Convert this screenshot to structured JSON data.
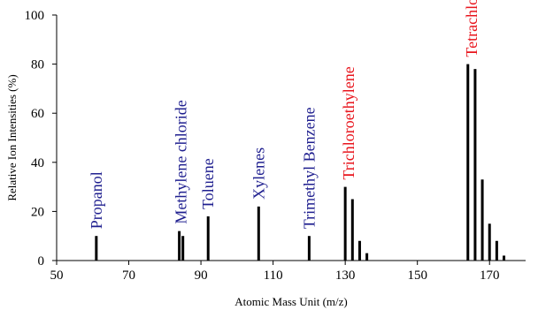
{
  "chart_data": {
    "type": "bar",
    "xlabel": "Atomic Mass Unit (m/z)",
    "ylabel": "Relative Ion Intensities (%)",
    "xlim": [
      50,
      180
    ],
    "ylim": [
      0,
      100
    ],
    "xticks": [
      50,
      70,
      90,
      110,
      130,
      150,
      170
    ],
    "yticks": [
      0,
      20,
      40,
      60,
      80,
      100
    ],
    "grid": false,
    "bars": [
      {
        "x": 61,
        "y": 10
      },
      {
        "x": 84,
        "y": 12
      },
      {
        "x": 85,
        "y": 10
      },
      {
        "x": 92,
        "y": 18
      },
      {
        "x": 106,
        "y": 22
      },
      {
        "x": 120,
        "y": 10
      },
      {
        "x": 130,
        "y": 30
      },
      {
        "x": 132,
        "y": 25
      },
      {
        "x": 134,
        "y": 8
      },
      {
        "x": 136,
        "y": 3
      },
      {
        "x": 164,
        "y": 80
      },
      {
        "x": 166,
        "y": 78
      },
      {
        "x": 168,
        "y": 33
      },
      {
        "x": 170,
        "y": 15
      },
      {
        "x": 172,
        "y": 8
      },
      {
        "x": 174,
        "y": 2
      }
    ],
    "annotations": [
      {
        "text": "Propanol",
        "x": 61,
        "y": 10,
        "color": "#1f1f8f"
      },
      {
        "text": "Methylene chloride",
        "x": 84.5,
        "y": 12,
        "color": "#1f1f8f"
      },
      {
        "text": "Toluene",
        "x": 92,
        "y": 18,
        "color": "#1f1f8f"
      },
      {
        "text": "Xylenes",
        "x": 106,
        "y": 22,
        "color": "#1f1f8f"
      },
      {
        "text": "Trimethyl Benzene",
        "x": 120,
        "y": 10,
        "color": "#1f1f8f"
      },
      {
        "text": "Trichloroethylene",
        "x": 131,
        "y": 30,
        "color": "#e8141c"
      },
      {
        "text": "Tetrachloroethylene",
        "x": 165,
        "y": 80,
        "color": "#e8141c"
      }
    ]
  }
}
